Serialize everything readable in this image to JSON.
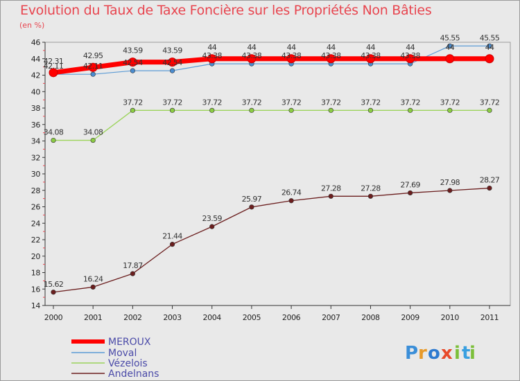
{
  "chart_data": {
    "type": "line",
    "title": "Evolution du Taux de Taxe Foncière sur les Propriétés Non Bâties",
    "ylabel": "(en %)",
    "xlabel": "",
    "ylim": [
      14,
      46
    ],
    "yticks": [
      "14",
      "16",
      "18",
      "20",
      "22",
      "24",
      "26",
      "28",
      "30",
      "32",
      "34",
      "36",
      "38",
      "40",
      "42",
      "44",
      "46"
    ],
    "categories": [
      "2000",
      "2001",
      "2002",
      "2003",
      "2004",
      "2005",
      "2006",
      "2007",
      "2008",
      "2009",
      "2010",
      "2011"
    ],
    "series": [
      {
        "name": "MEROUX",
        "color": "#ff0000",
        "values": [
          42.31,
          42.95,
          43.59,
          43.59,
          44,
          44,
          44,
          44,
          44,
          44,
          44,
          44
        ],
        "labels": [
          "42.31",
          "42.95",
          "43.59",
          "43.59",
          "44",
          "44",
          "44",
          "44",
          "44",
          "44",
          "44",
          "44"
        ]
      },
      {
        "name": "Moval",
        "color": "#5b9bd5",
        "values": [
          42.11,
          42.11,
          42.54,
          42.54,
          43.38,
          43.38,
          43.38,
          43.38,
          43.38,
          43.38,
          45.55,
          45.55
        ],
        "labels": [
          "42.11",
          "42.11",
          "42.54",
          "42.54",
          "43.38",
          "43.38",
          "43.38",
          "43.38",
          "43.38",
          "43.38",
          "45.55",
          "45.55"
        ]
      },
      {
        "name": "Vézelois",
        "color": "#9bd35a",
        "values": [
          34.08,
          34.08,
          37.72,
          37.72,
          37.72,
          37.72,
          37.72,
          37.72,
          37.72,
          37.72,
          37.72,
          37.72
        ],
        "labels": [
          "34.08",
          "34.08",
          "37.72",
          "37.72",
          "37.72",
          "37.72",
          "37.72",
          "37.72",
          "37.72",
          "37.72",
          "37.72",
          "37.72"
        ]
      },
      {
        "name": "Andelnans",
        "color": "#6b1e1e",
        "values": [
          15.62,
          16.24,
          17.87,
          21.44,
          23.59,
          25.97,
          26.74,
          27.28,
          27.28,
          27.69,
          27.98,
          28.27
        ],
        "labels": [
          "15.62",
          "16.24",
          "17.87",
          "21.44",
          "23.59",
          "25.97",
          "26.74",
          "27.28",
          "27.28",
          "27.69",
          "27.98",
          "28.27"
        ]
      }
    ],
    "legend_position": "bottom-left",
    "grid": false
  },
  "logo": {
    "text": "Proxiti",
    "letters": [
      "P",
      "r",
      "o",
      "x",
      "i",
      "t",
      "i"
    ]
  }
}
